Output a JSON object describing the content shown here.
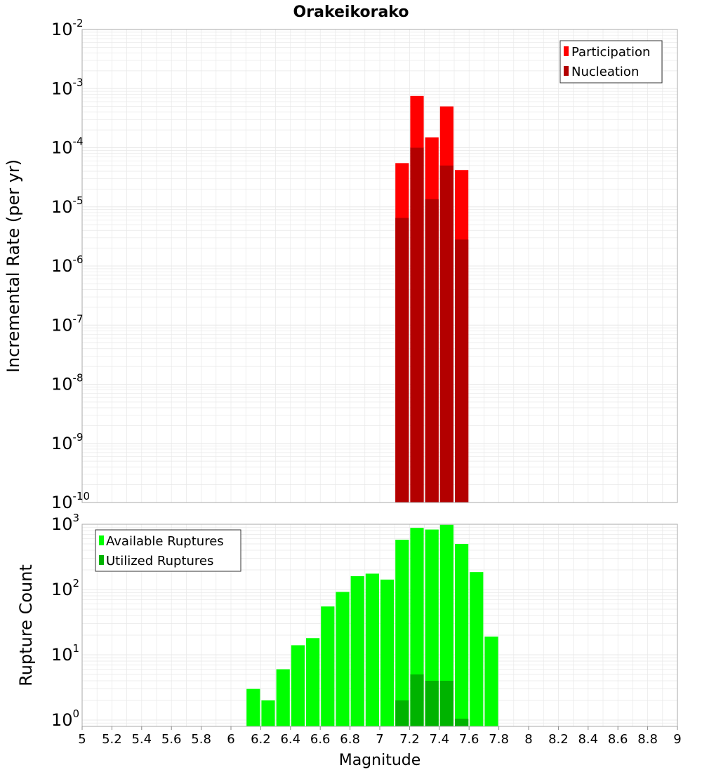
{
  "colors": {
    "participation": "#ff0000",
    "nucleation": "#b30000",
    "available": "#00ff00",
    "utilized": "#00b300",
    "grid": "#e8e8e8",
    "frame": "#aaaaaa"
  },
  "chart_data": [
    {
      "type": "bar",
      "scale": "log",
      "title": "Orakeikorako",
      "ylabel": "Incremental Rate (per yr)",
      "xlabel": "",
      "xlim": [
        5,
        9
      ],
      "ylim": [
        1e-10,
        0.01
      ],
      "bin_width": 0.1,
      "y_ticks": [
        {
          "base": "10",
          "exp": "-2"
        },
        {
          "base": "10",
          "exp": "-3"
        },
        {
          "base": "10",
          "exp": "-4"
        },
        {
          "base": "10",
          "exp": "-5"
        },
        {
          "base": "10",
          "exp": "-6"
        },
        {
          "base": "10",
          "exp": "-7"
        },
        {
          "base": "10",
          "exp": "-8"
        },
        {
          "base": "10",
          "exp": "-9"
        },
        {
          "base": "10",
          "exp": "-10"
        }
      ],
      "legend": {
        "position": "top-right",
        "entries": [
          "Participation",
          "Nucleation"
        ]
      },
      "series": [
        {
          "name": "Participation",
          "color_key": "participation",
          "x": [
            7.15,
            7.25,
            7.35,
            7.45,
            7.55
          ],
          "values": [
            5.5e-05,
            0.00075,
            0.00015,
            0.0005,
            4.2e-05
          ]
        },
        {
          "name": "Nucleation",
          "color_key": "nucleation",
          "x": [
            7.15,
            7.25,
            7.35,
            7.45,
            7.55
          ],
          "values": [
            6.5e-06,
            0.0001,
            1.35e-05,
            5e-05,
            2.8e-06
          ]
        }
      ]
    },
    {
      "type": "bar",
      "scale": "log",
      "title": "",
      "ylabel": "Rupture Count",
      "xlabel": "Magnitude",
      "xlim": [
        5,
        9
      ],
      "ylim": [
        0.8,
        1000
      ],
      "bin_width": 0.1,
      "x_ticks": [
        "5",
        "5.2",
        "5.4",
        "5.6",
        "5.8",
        "6",
        "6.2",
        "6.4",
        "6.6",
        "6.8",
        "7",
        "7.2",
        "7.4",
        "7.6",
        "7.8",
        "8",
        "8.2",
        "8.4",
        "8.6",
        "8.8",
        "9"
      ],
      "y_ticks": [
        {
          "base": "10",
          "exp": "3"
        },
        {
          "base": "10",
          "exp": "2"
        },
        {
          "base": "10",
          "exp": "1"
        },
        {
          "base": "10",
          "exp": "0"
        }
      ],
      "legend": {
        "position": "top-left",
        "entries": [
          "Available Ruptures",
          "Utilized Ruptures"
        ]
      },
      "series": [
        {
          "name": "Available Ruptures",
          "color_key": "available",
          "x": [
            6.15,
            6.25,
            6.35,
            6.45,
            6.55,
            6.65,
            6.75,
            6.85,
            6.95,
            7.05,
            7.15,
            7.25,
            7.35,
            7.45,
            7.55,
            7.65,
            7.75
          ],
          "values": [
            3,
            2,
            6,
            14,
            18,
            55,
            92,
            160,
            175,
            142,
            580,
            880,
            830,
            980,
            500,
            185,
            19
          ]
        },
        {
          "name": "Utilized Ruptures",
          "color_key": "utilized",
          "x": [
            7.15,
            7.25,
            7.35,
            7.45,
            7.55
          ],
          "values": [
            2,
            5,
            4,
            4,
            1.05
          ]
        }
      ]
    }
  ]
}
